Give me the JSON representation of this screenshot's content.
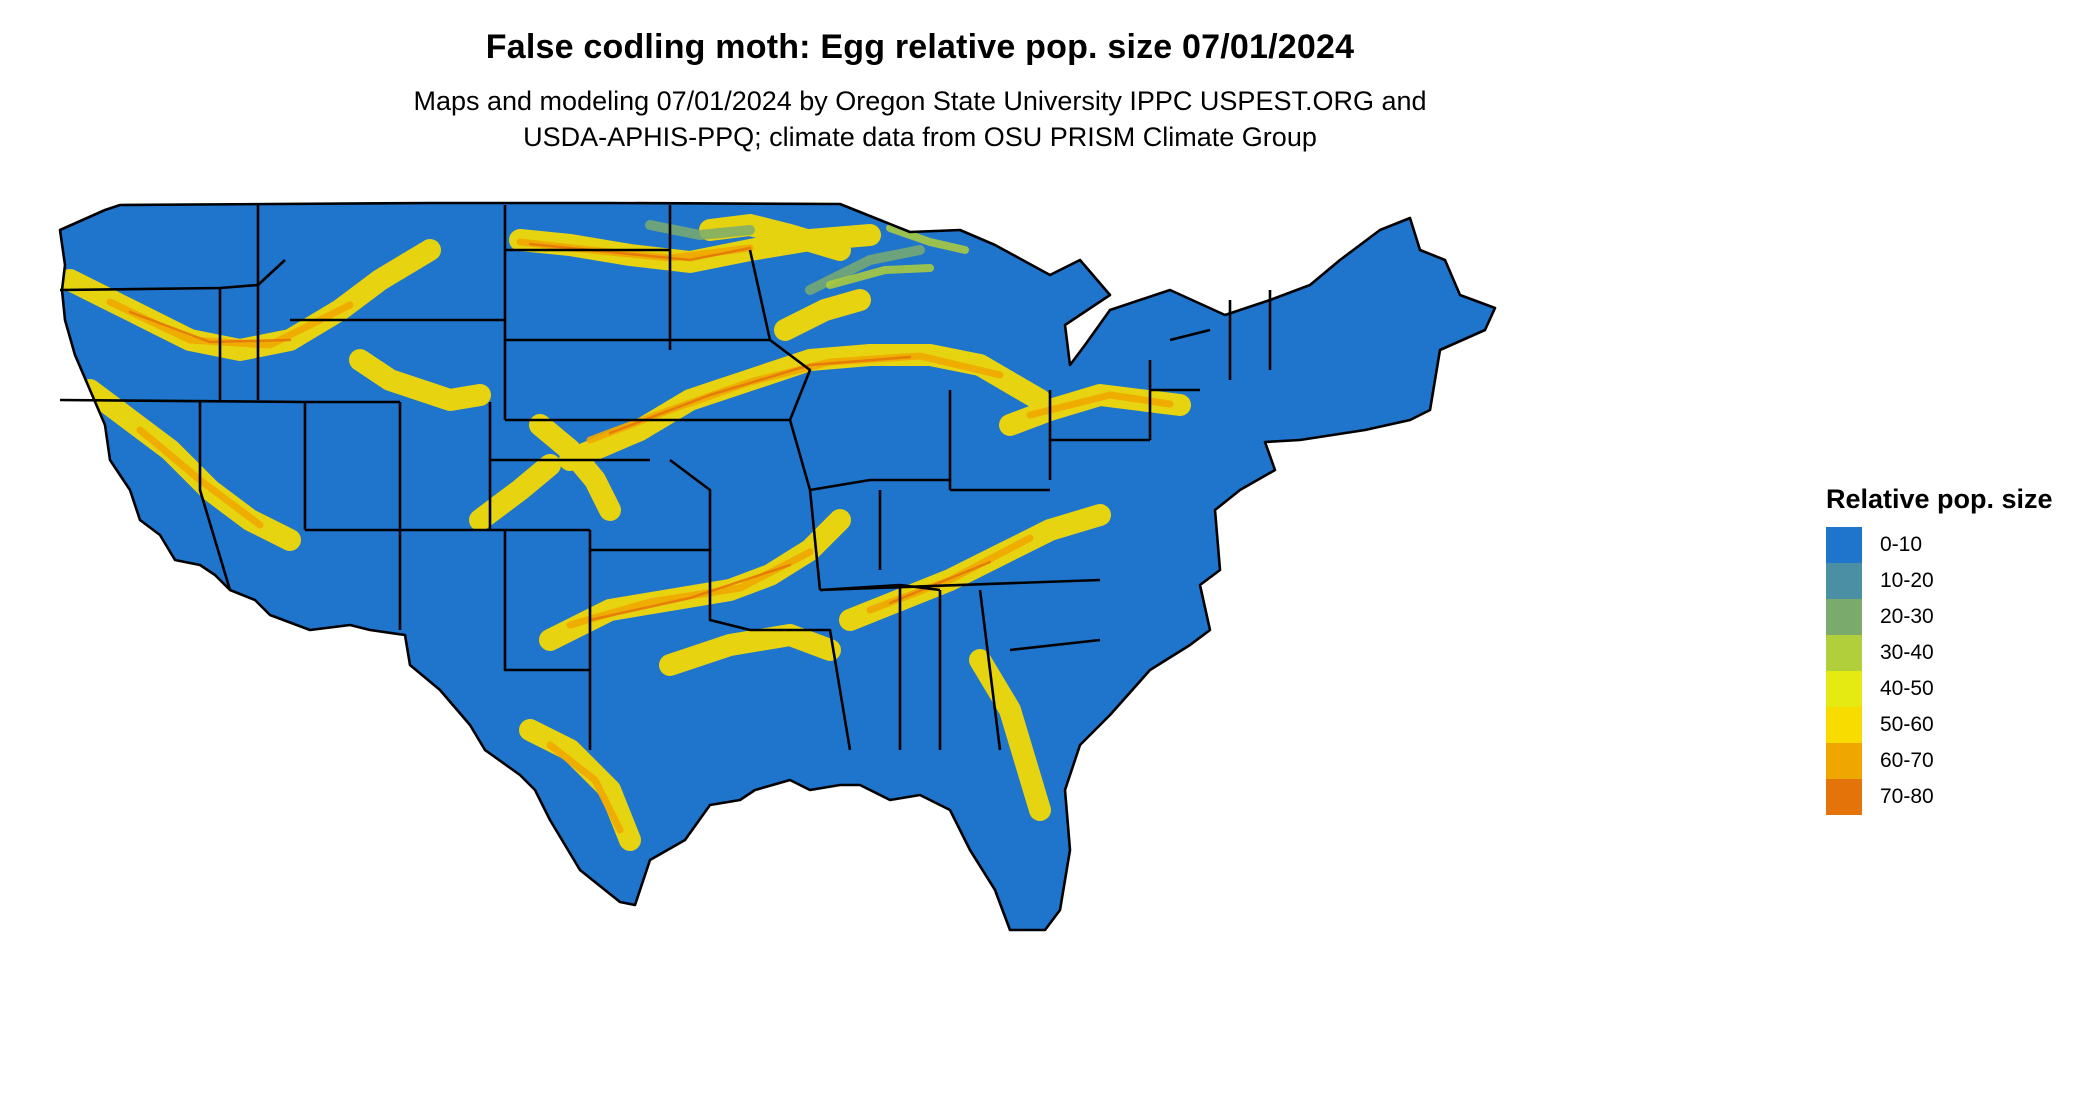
{
  "header": {
    "title": "False codling moth: Egg relative pop. size 07/01/2024",
    "subtitle_line1": "Maps and modeling 07/01/2024 by Oregon State University IPPC USPEST.ORG and",
    "subtitle_line2": "USDA-APHIS-PPQ; climate data from OSU PRISM Climate Group"
  },
  "legend": {
    "title": "Relative pop. size",
    "items": [
      {
        "label": "0-10",
        "color": "#1f74cc"
      },
      {
        "label": "10-20",
        "color": "#4a8fa3"
      },
      {
        "label": "20-30",
        "color": "#7aab6d"
      },
      {
        "label": "30-40",
        "color": "#b0cf3a"
      },
      {
        "label": "40-50",
        "color": "#e4ea12"
      },
      {
        "label": "50-60",
        "color": "#f8dc00"
      },
      {
        "label": "60-70",
        "color": "#efa700"
      },
      {
        "label": "70-80",
        "color": "#e4730a"
      }
    ]
  },
  "map": {
    "region": "Contiguous United States",
    "base_color": "#1f74cc",
    "border_color": "#000000"
  }
}
